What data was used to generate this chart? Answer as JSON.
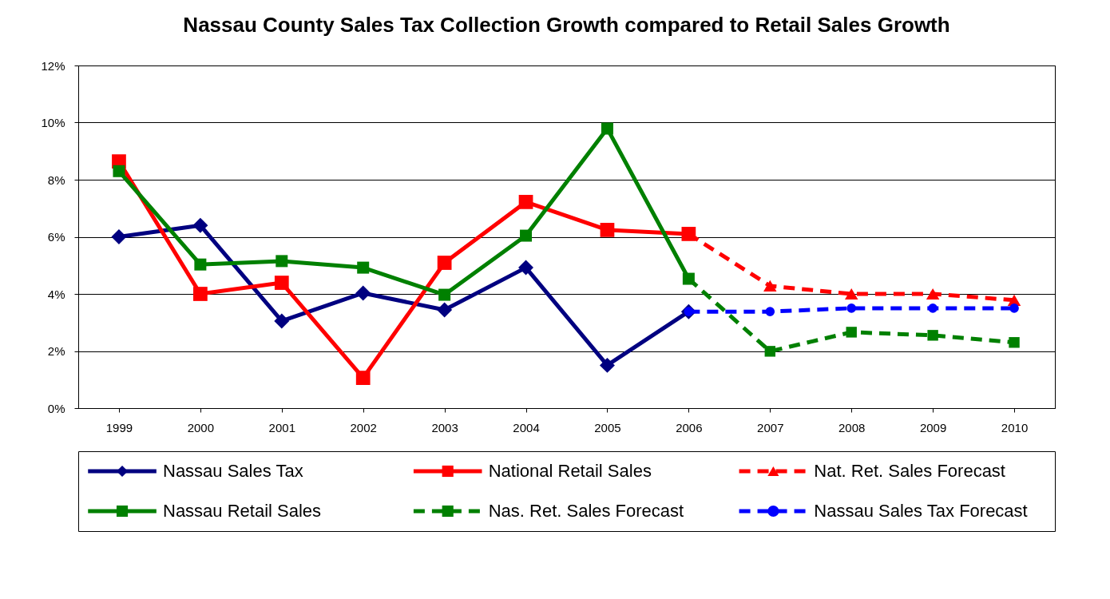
{
  "chart_data": {
    "type": "line",
    "title": "Nassau County Sales Tax Collection Growth compared to Retail Sales Growth",
    "categories": [
      "1999",
      "2000",
      "2001",
      "2002",
      "2003",
      "2004",
      "2005",
      "2006",
      "2007",
      "2008",
      "2009",
      "2010"
    ],
    "series": [
      {
        "name": "Nassau Sales Tax",
        "color": "#000080",
        "marker": "diamond",
        "line_style": "solid",
        "values": [
          6.0,
          6.4,
          3.05,
          4.03,
          3.44,
          4.92,
          1.5,
          3.38,
          null,
          null,
          null,
          null
        ]
      },
      {
        "name": "National Retail Sales",
        "color": "#ff0000",
        "marker": "square",
        "line_style": "solid",
        "values": [
          8.64,
          4.0,
          4.39,
          1.06,
          5.09,
          7.22,
          6.24,
          6.1,
          null,
          null,
          null,
          null
        ]
      },
      {
        "name": "Nat. Ret. Sales Forecast",
        "color": "#ff0000",
        "marker": "triangle",
        "line_style": "dashed",
        "values": [
          null,
          null,
          null,
          null,
          null,
          null,
          null,
          6.1,
          4.28,
          4.0,
          4.0,
          3.78
        ]
      },
      {
        "name": "Nassau Retail Sales",
        "color": "#008000",
        "marker": "square",
        "line_style": "solid",
        "values": [
          8.3,
          5.03,
          5.15,
          4.92,
          3.97,
          6.04,
          9.79,
          4.53,
          null,
          null,
          null,
          null
        ]
      },
      {
        "name": "Nas. Ret. Sales Forecast",
        "color": "#008000",
        "marker": "square",
        "line_style": "dashed",
        "values": [
          null,
          null,
          null,
          null,
          null,
          null,
          null,
          4.53,
          1.99,
          2.66,
          2.55,
          2.3
        ]
      },
      {
        "name": "Nassau Sales Tax Forecast",
        "color": "#0000ff",
        "marker": "circle",
        "line_style": "dashed",
        "values": [
          null,
          null,
          null,
          null,
          null,
          null,
          null,
          3.38,
          3.38,
          3.5,
          3.5,
          3.5
        ]
      }
    ],
    "ylim": [
      0,
      12
    ],
    "yticks": [
      {
        "value": 0,
        "label": "0%"
      },
      {
        "value": 2,
        "label": "2%"
      },
      {
        "value": 4,
        "label": "4%"
      },
      {
        "value": 6,
        "label": "6%"
      },
      {
        "value": 8,
        "label": "8%"
      },
      {
        "value": 10,
        "label": "10%"
      },
      {
        "value": 12,
        "label": "12%"
      }
    ],
    "grid": "y",
    "legend": "bottom"
  }
}
